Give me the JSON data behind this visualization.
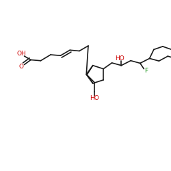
{
  "background_color": "#ffffff",
  "bond_color": "#1a1a1a",
  "atom_colors": {
    "O": "#cc0000",
    "F": "#008800",
    "C": "#1a1a1a"
  },
  "figsize": [
    2.5,
    2.5
  ],
  "dpi": 100,
  "lw": 1.2,
  "fontsize": 6.5,
  "xlim": [
    0,
    10
  ],
  "ylim": [
    0,
    10
  ]
}
